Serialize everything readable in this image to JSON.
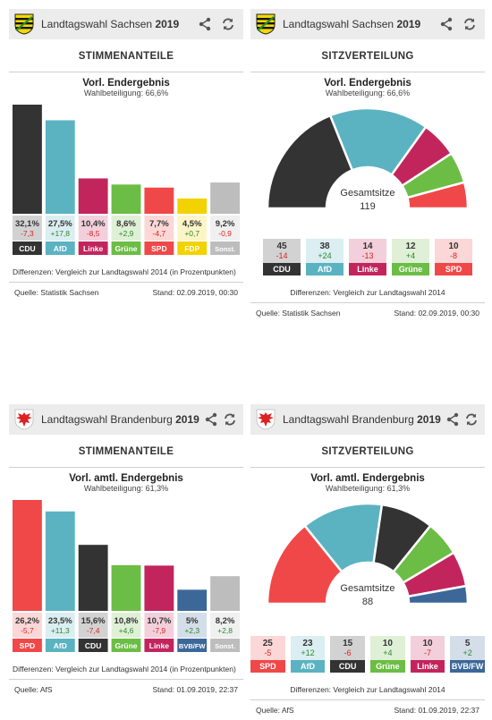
{
  "colors": {
    "CDU": "#333333",
    "AfD": "#5bb3c2",
    "Linke": "#c2255c",
    "Grüne": "#6cbd45",
    "SPD": "#f04848",
    "FDP": "#f2d200",
    "Sonst.": "#bdbdbd",
    "BVB/FW": "#3c6899"
  },
  "widgets": {
    "sx_stimmen": {
      "header": {
        "title": "Landtagswahl Sachsen",
        "year": "2019"
      },
      "section": "STIMMENANTEILE",
      "result_title": "Vorl. Endergebnis",
      "turnout": "Wahlbeteiligung: 66,6%",
      "chart_data": {
        "type": "bar",
        "categories": [
          "CDU",
          "AfD",
          "Linke",
          "Grüne",
          "SPD",
          "FDP",
          "Sonst."
        ],
        "values": [
          32.1,
          27.5,
          10.4,
          8.6,
          7.7,
          4.5,
          9.2
        ]
      },
      "items": [
        {
          "party": "CDU",
          "value": "32,1%",
          "diff": "-7,3"
        },
        {
          "party": "AfD",
          "value": "27,5%",
          "diff": "+17,8"
        },
        {
          "party": "Linke",
          "value": "10,4%",
          "diff": "-8,5"
        },
        {
          "party": "Grüne",
          "value": "8,6%",
          "diff": "+2,9"
        },
        {
          "party": "SPD",
          "value": "7,7%",
          "diff": "-4,7"
        },
        {
          "party": "FDP",
          "value": "4,5%",
          "diff": "+0,7"
        },
        {
          "party": "Sonst.",
          "value": "9,2%",
          "diff": "-0,9"
        }
      ],
      "diff_note": "Differenzen: Vergleich zur Landtagswahl 2014 (in Prozentpunkten)",
      "source": "Quelle: Statistik Sachsen",
      "stand": "Stand: 02.09.2019, 00:30"
    },
    "sx_sitze": {
      "header": {
        "title": "Landtagswahl Sachsen",
        "year": "2019"
      },
      "section": "SITZVERTEILUNG",
      "result_title": "Vorl. Endergebnis",
      "turnout": "Wahlbeteiligung: 66,6%",
      "total_label": "Gesamtsitze",
      "total": "119",
      "chart_data": {
        "type": "pie",
        "categories": [
          "CDU",
          "AfD",
          "Linke",
          "Grüne",
          "SPD"
        ],
        "values": [
          45,
          38,
          14,
          12,
          10
        ]
      },
      "items": [
        {
          "party": "CDU",
          "value": "45",
          "diff": "-14"
        },
        {
          "party": "AfD",
          "value": "38",
          "diff": "+24"
        },
        {
          "party": "Linke",
          "value": "14",
          "diff": "-13"
        },
        {
          "party": "Grüne",
          "value": "12",
          "diff": "+4"
        },
        {
          "party": "SPD",
          "value": "10",
          "diff": "-8"
        }
      ],
      "diff_note": "Differenzen: Vergleich zur Landtagswahl 2014",
      "source": "Quelle: Statistik Sachsen",
      "stand": "Stand: 02.09.2019, 00:30"
    },
    "bb_stimmen": {
      "header": {
        "title": "Landtagswahl Brandenburg",
        "year": "2019"
      },
      "section": "STIMMENANTEILE",
      "result_title": "Vorl. amtl. Endergebnis",
      "turnout": "Wahlbeteiligung: 61,3%",
      "chart_data": {
        "type": "bar",
        "categories": [
          "SPD",
          "AfD",
          "CDU",
          "Grüne",
          "Linke",
          "BVB/FW",
          "Sonst."
        ],
        "values": [
          26.2,
          23.5,
          15.6,
          10.8,
          10.7,
          5.0,
          8.2
        ]
      },
      "items": [
        {
          "party": "SPD",
          "value": "26,2%",
          "diff": "-5,7"
        },
        {
          "party": "AfD",
          "value": "23,5%",
          "diff": "+11,3"
        },
        {
          "party": "CDU",
          "value": "15,6%",
          "diff": "-7,4"
        },
        {
          "party": "Grüne",
          "value": "10,8%",
          "diff": "+4,6"
        },
        {
          "party": "Linke",
          "value": "10,7%",
          "diff": "-7,9"
        },
        {
          "party": "BVB/FW",
          "value": "5%",
          "diff": "+2,3"
        },
        {
          "party": "Sonst.",
          "value": "8,2%",
          "diff": "+2,8"
        }
      ],
      "diff_note": "Differenzen: Vergleich zur Landtagswahl 2014 (in Prozentpunkten)",
      "source": "Quelle: AfS",
      "stand": "Stand: 01.09.2019, 22:37"
    },
    "bb_sitze": {
      "header": {
        "title": "Landtagswahl Brandenburg",
        "year": "2019"
      },
      "section": "SITZVERTEILUNG",
      "result_title": "Vorl. amtl. Endergebnis",
      "turnout": "Wahlbeteiligung: 61,3%",
      "total_label": "Gesamtsitze",
      "total": "88",
      "chart_data": {
        "type": "pie",
        "categories": [
          "SPD",
          "AfD",
          "CDU",
          "Grüne",
          "Linke",
          "BVB/FW"
        ],
        "values": [
          25,
          23,
          15,
          10,
          10,
          5
        ]
      },
      "items": [
        {
          "party": "SPD",
          "value": "25",
          "diff": "-5"
        },
        {
          "party": "AfD",
          "value": "23",
          "diff": "+12"
        },
        {
          "party": "CDU",
          "value": "15",
          "diff": "-6"
        },
        {
          "party": "Grüne",
          "value": "10",
          "diff": "+4"
        },
        {
          "party": "Linke",
          "value": "10",
          "diff": "-7"
        },
        {
          "party": "BVB/FW",
          "value": "5",
          "diff": "+2"
        }
      ],
      "diff_note": "Differenzen: Vergleich zur Landtagswahl 2014",
      "source": "Quelle: AfS",
      "stand": "Stand: 01.09.2019, 22:37"
    }
  }
}
